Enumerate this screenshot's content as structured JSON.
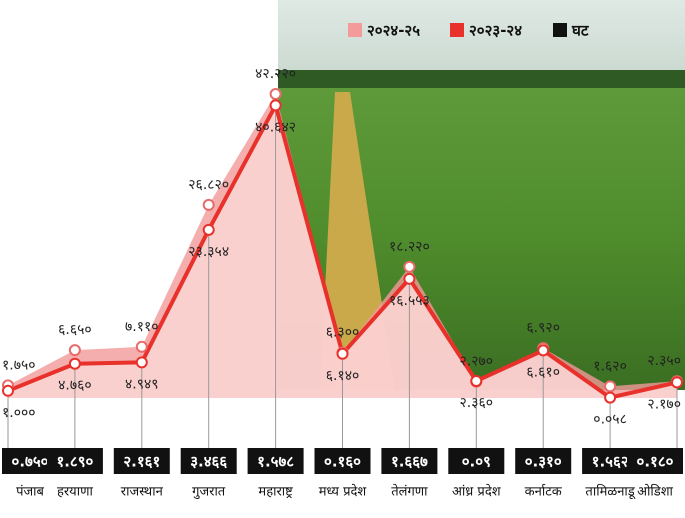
{
  "chart_data": {
    "type": "area-line",
    "categories": [
      "पंजाब",
      "हरयाणा",
      "राजस्थान",
      "गुजरात",
      "महाराष्ट्र",
      "मध्य प्रदेश",
      "तेलंगणा",
      "आंध्र प्रदेश",
      "कर्नाटक",
      "तामिळनाडू",
      "ओडिशा"
    ],
    "series": [
      {
        "name": "२०२४-२५",
        "color": "#f39a9a",
        "values": [
          1.75,
          6.65,
          7.11,
          26.82,
          42.22,
          6.3,
          18.22,
          2.27,
          6.92,
          1.62,
          2.35
        ],
        "value_labels": [
          "१.७५०",
          "६.६५०",
          "७.११०",
          "२६.८२०",
          "४२.२२०",
          "६.३००",
          "१८.२२०",
          "२.२७०",
          "६.९२०",
          "१.६२०",
          "२.३५०"
        ]
      },
      {
        "name": "२०२३-२४",
        "color": "#e8312a",
        "values": [
          1.0,
          4.76,
          4.949,
          23.354,
          40.642,
          6.14,
          16.553,
          2.36,
          6.61,
          0.058,
          2.17
        ],
        "value_labels": [
          "१.०००",
          "४.७६०",
          "४.९४९",
          "२३.३५४",
          "४०.६४२",
          "६.१४०",
          "१६.५५३",
          "२.३६०",
          "६.६१०",
          "०.०५८",
          "२.१७०"
        ]
      },
      {
        "name": "घट",
        "color": "#111111",
        "values": [
          0.75,
          1.89,
          2.161,
          3.466,
          1.578,
          0.16,
          1.667,
          0.09,
          0.31,
          1.562,
          0.18
        ],
        "value_labels": [
          "०.७५०",
          "१.८९०",
          "२.१६१",
          "३.४६६",
          "१.५७८",
          "०.१६०",
          "१.६६७",
          "०.०९",
          "०.३१०",
          "१.५६२",
          "०.१८०"
        ]
      }
    ]
  }
}
